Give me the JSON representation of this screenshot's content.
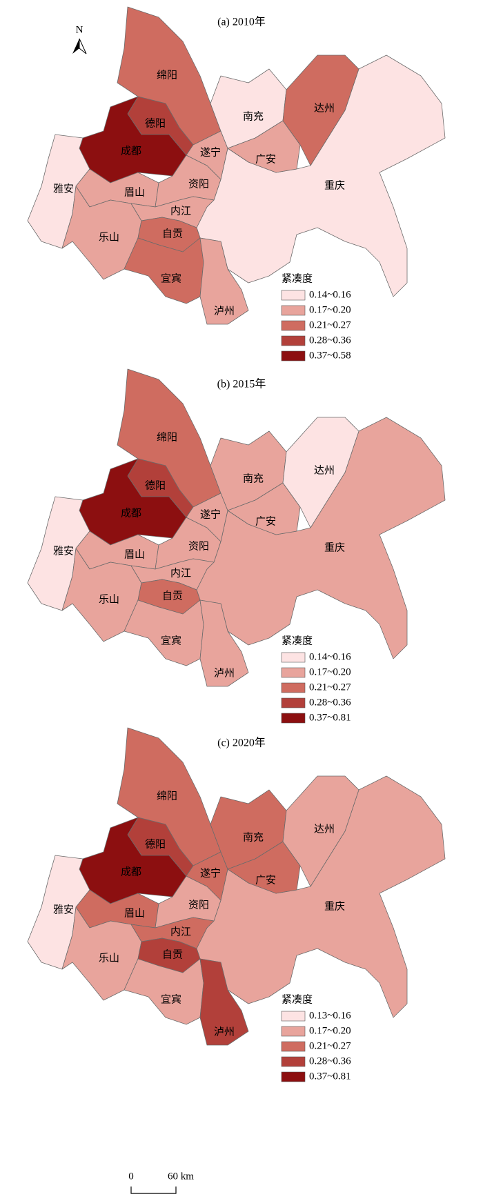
{
  "north": "N",
  "panels": [
    {
      "title": "(a) 2010年",
      "legend": {
        "title": "紧凑度",
        "items": [
          {
            "label": "0.14~0.16",
            "color": "#fde3e3"
          },
          {
            "label": "0.17~0.20",
            "color": "#e8a49c"
          },
          {
            "label": "0.21~0.27",
            "color": "#cf6c60"
          },
          {
            "label": "0.28~0.36",
            "color": "#b2403a"
          },
          {
            "label": "0.37~0.58",
            "color": "#8c0f10"
          }
        ]
      },
      "regions": [
        {
          "name": "重庆",
          "color": "#fde3e3"
        },
        {
          "name": "绵阳",
          "color": "#cf6c60"
        },
        {
          "name": "德阳",
          "color": "#b2403a"
        },
        {
          "name": "成都",
          "color": "#8c0f10"
        },
        {
          "name": "雅安",
          "color": "#fde3e3"
        },
        {
          "name": "眉山",
          "color": "#e8a49c"
        },
        {
          "name": "乐山",
          "color": "#e8a49c"
        },
        {
          "name": "资阳",
          "color": "#e8a49c"
        },
        {
          "name": "内江",
          "color": "#e8a49c"
        },
        {
          "name": "自贡",
          "color": "#cf6c60"
        },
        {
          "name": "宜宾",
          "color": "#cf6c60"
        },
        {
          "name": "泸州",
          "color": "#e8a49c"
        },
        {
          "name": "遂宁",
          "color": "#e8a49c"
        },
        {
          "name": "南充",
          "color": "#fde3e3"
        },
        {
          "name": "广安",
          "color": "#e8a49c"
        },
        {
          "name": "达州",
          "color": "#cf6c60"
        }
      ]
    },
    {
      "title": "(b) 2015年",
      "legend": {
        "title": "紧凑度",
        "items": [
          {
            "label": "0.14~0.16",
            "color": "#fde3e3"
          },
          {
            "label": "0.17~0.20",
            "color": "#e8a49c"
          },
          {
            "label": "0.21~0.27",
            "color": "#cf6c60"
          },
          {
            "label": "0.28~0.36",
            "color": "#b2403a"
          },
          {
            "label": "0.37~0.81",
            "color": "#8c0f10"
          }
        ]
      },
      "regions": [
        {
          "name": "重庆",
          "color": "#e8a49c"
        },
        {
          "name": "绵阳",
          "color": "#cf6c60"
        },
        {
          "name": "德阳",
          "color": "#b2403a"
        },
        {
          "name": "成都",
          "color": "#8c0f10"
        },
        {
          "name": "雅安",
          "color": "#fde3e3"
        },
        {
          "name": "眉山",
          "color": "#e8a49c"
        },
        {
          "name": "乐山",
          "color": "#e8a49c"
        },
        {
          "name": "资阳",
          "color": "#e8a49c"
        },
        {
          "name": "内江",
          "color": "#e8a49c"
        },
        {
          "name": "自贡",
          "color": "#cf6c60"
        },
        {
          "name": "宜宾",
          "color": "#e8a49c"
        },
        {
          "name": "泸州",
          "color": "#e8a49c"
        },
        {
          "name": "遂宁",
          "color": "#e8a49c"
        },
        {
          "name": "南充",
          "color": "#e8a49c"
        },
        {
          "name": "广安",
          "color": "#e8a49c"
        },
        {
          "name": "达州",
          "color": "#fde3e3"
        }
      ]
    },
    {
      "title": "(c) 2020年",
      "legend": {
        "title": "紧凑度",
        "items": [
          {
            "label": "0.13~0.16",
            "color": "#fde3e3"
          },
          {
            "label": "0.17~0.20",
            "color": "#e8a49c"
          },
          {
            "label": "0.21~0.27",
            "color": "#cf6c60"
          },
          {
            "label": "0.28~0.36",
            "color": "#b2403a"
          },
          {
            "label": "0.37~0.81",
            "color": "#8c0f10"
          }
        ]
      },
      "regions": [
        {
          "name": "重庆",
          "color": "#e8a49c"
        },
        {
          "name": "绵阳",
          "color": "#cf6c60"
        },
        {
          "name": "德阳",
          "color": "#b2403a"
        },
        {
          "name": "成都",
          "color": "#8c0f10"
        },
        {
          "name": "雅安",
          "color": "#fde3e3"
        },
        {
          "name": "眉山",
          "color": "#cf6c60"
        },
        {
          "name": "乐山",
          "color": "#e8a49c"
        },
        {
          "name": "资阳",
          "color": "#e8a49c"
        },
        {
          "name": "内江",
          "color": "#cf6c60"
        },
        {
          "name": "自贡",
          "color": "#b2403a"
        },
        {
          "name": "宜宾",
          "color": "#e8a49c"
        },
        {
          "name": "泸州",
          "color": "#b2403a"
        },
        {
          "name": "遂宁",
          "color": "#cf6c60"
        },
        {
          "name": "南充",
          "color": "#cf6c60"
        },
        {
          "name": "广安",
          "color": "#cf6c60"
        },
        {
          "name": "达州",
          "color": "#e8a49c"
        }
      ]
    }
  ],
  "scale_bar": {
    "zero": "0",
    "distance": "60 km"
  }
}
